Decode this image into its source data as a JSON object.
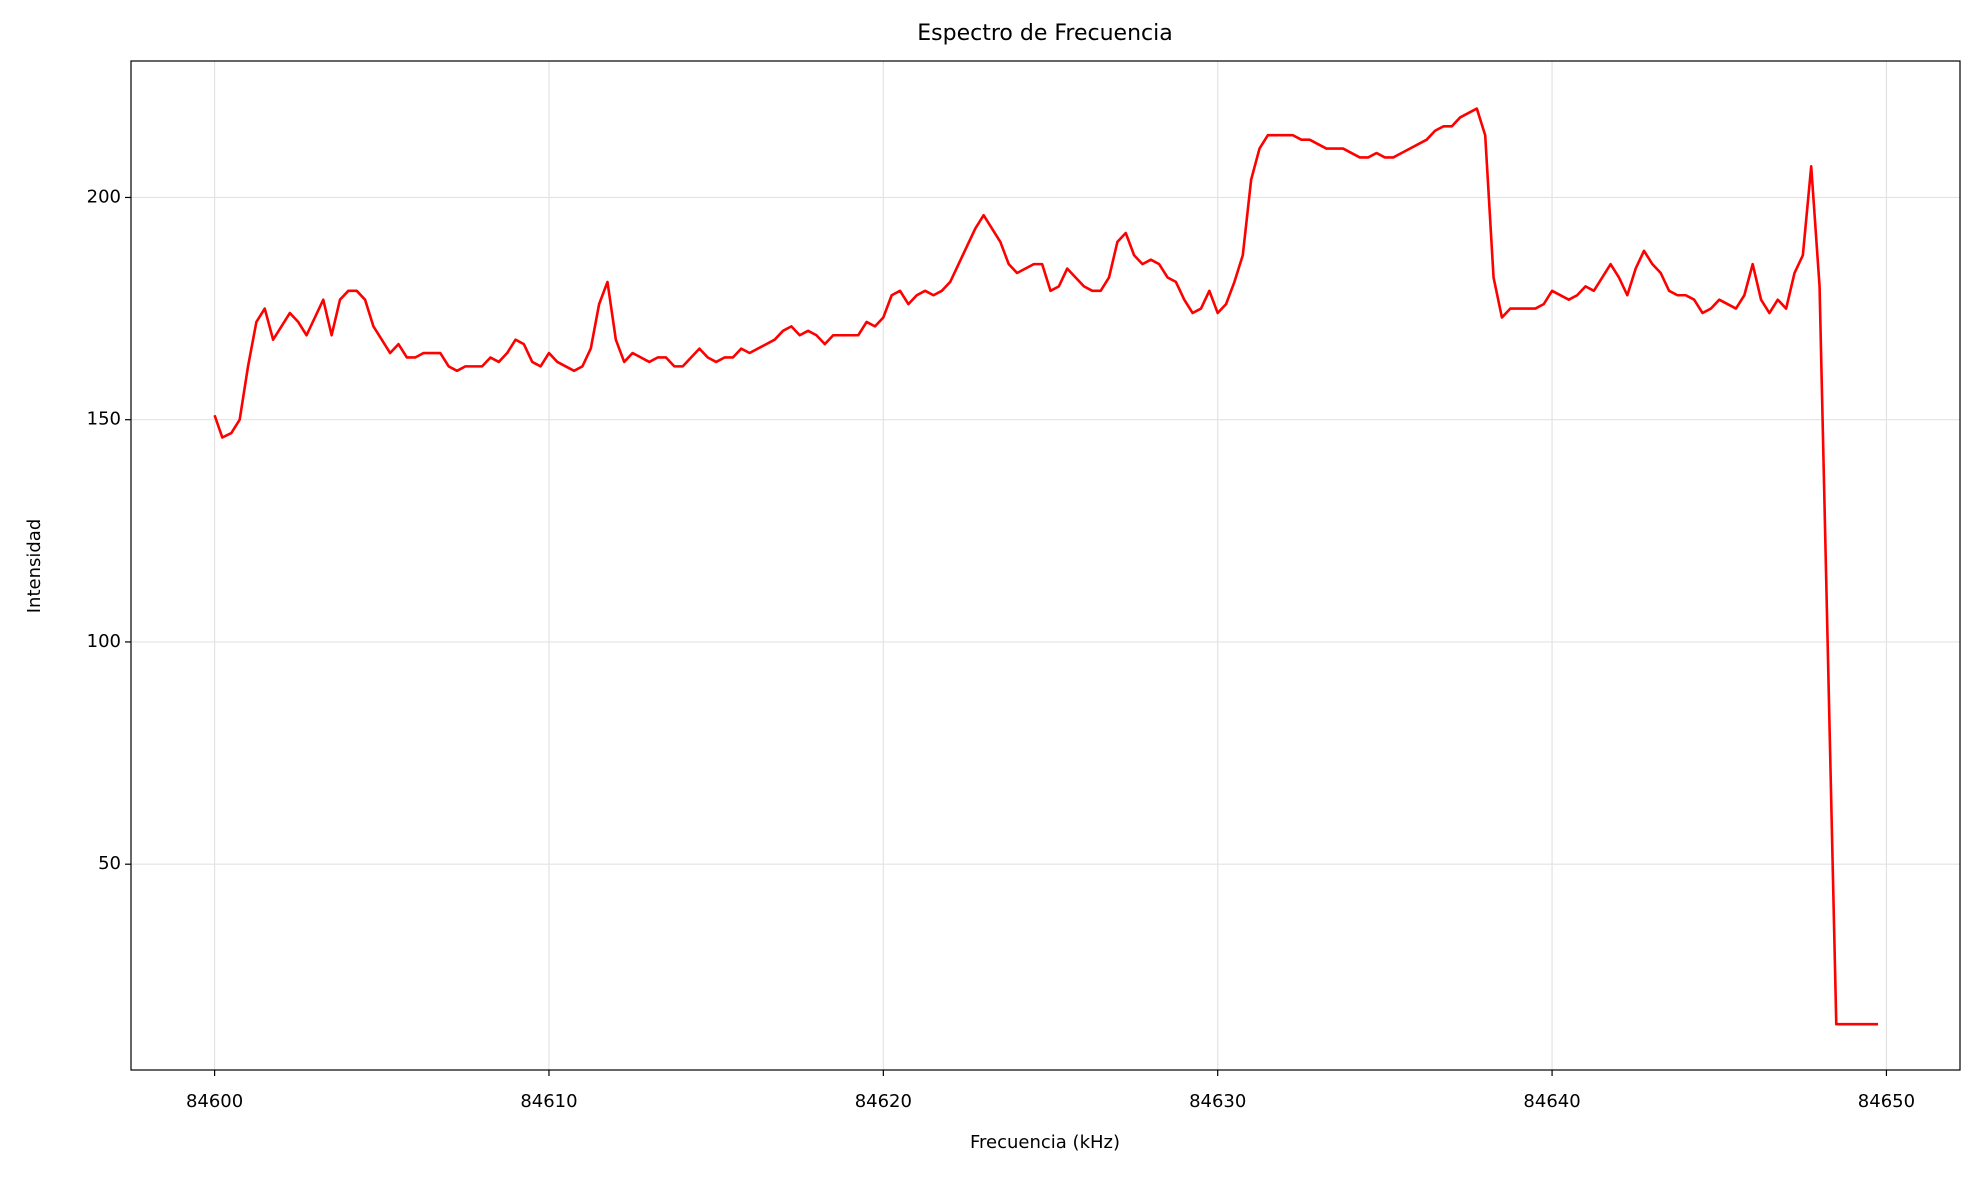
{
  "chart_data": {
    "type": "line",
    "title": "Espectro de Frecuencia",
    "x_label": "Frecuencia (kHz)",
    "y_label": "Intensidad",
    "x": [
      84600,
      84600.23,
      84600.5,
      84600.75,
      84601,
      84601.25,
      84601.5,
      84601.75,
      84602.25,
      84602.5,
      84602.75,
      84603.25,
      84603.5,
      84603.75,
      84604,
      84604.25,
      84604.5,
      84604.75,
      84605.25,
      84605.5,
      84605.75,
      84606,
      84606.25,
      84606.75,
      84607,
      84607.25,
      84607.5,
      84608,
      84608.25,
      84608.5,
      84608.75,
      84609,
      84609.25,
      84609.5,
      84609.75,
      84610,
      84610.25,
      84610.75,
      84611,
      84611.25,
      84611.5,
      84611.75,
      84612,
      84612.25,
      84612.5,
      84613,
      84613.25,
      84613.5,
      84613.75,
      84614,
      84614.5,
      84614.75,
      84615,
      84615.25,
      84615.5,
      84615.75,
      84616,
      84616.75,
      84617,
      84617.25,
      84617.5,
      84617.75,
      84618,
      84618.25,
      84618.5,
      84619.25,
      84619.5,
      84619.75,
      84620,
      84620.25,
      84620.5,
      84620.75,
      84621,
      84621.25,
      84621.5,
      84621.75,
      84622,
      84622.75,
      84623,
      84623.5,
      84623.75,
      84624,
      84624.5,
      84624.75,
      84625,
      84625.25,
      84625.5,
      84626,
      84626.25,
      84626.5,
      84626.75,
      84627,
      84627.25,
      84627.5,
      84627.75,
      84628,
      84628.25,
      84628.5,
      84628.75,
      84629,
      84629.25,
      84629.5,
      84629.75,
      84630,
      84630.25,
      84630.5,
      84630.75,
      84631,
      84631.25,
      84631.5,
      84632.25,
      84632.5,
      84632.75,
      84633.25,
      84633.75,
      84634.25,
      84634.5,
      84634.75,
      84635,
      84635.25,
      84636.25,
      84636.5,
      84636.75,
      84637,
      84637.25,
      84637.75,
      84638,
      84638.25,
      84638.5,
      84638.75,
      84639.5,
      84639.75,
      84640,
      84640.5,
      84640.75,
      84641,
      84641.25,
      84641.75,
      84642,
      84642.25,
      84642.5,
      84642.75,
      84643,
      84643.25,
      84643.5,
      84643.75,
      84644,
      84644.25,
      84644.5,
      84644.75,
      84645,
      84645.5,
      84645.75,
      84646,
      84646.25,
      84646.5,
      84646.75,
      84647,
      84647.25,
      84647.5,
      84647.75,
      84648,
      84648.5,
      84649.75
    ],
    "series": [
      {
        "color": "#ff0000",
        "values": [
          151,
          146,
          147,
          150,
          162,
          172,
          175,
          168,
          174,
          172,
          169,
          177,
          169,
          177,
          179,
          179,
          177,
          171,
          165,
          167,
          164,
          164,
          165,
          165,
          162,
          161,
          162,
          162,
          164,
          163,
          165,
          168,
          167,
          163,
          162,
          165,
          163,
          161,
          162,
          166,
          176,
          181,
          168,
          163,
          165,
          163,
          164,
          164,
          162,
          162,
          166,
          164,
          163,
          164,
          164,
          166,
          165,
          168,
          170,
          171,
          169,
          170,
          169,
          167,
          169,
          169,
          172,
          171,
          173,
          178,
          179,
          176,
          178,
          179,
          178,
          179,
          181,
          193,
          196,
          190,
          185,
          183,
          185,
          185,
          179,
          180,
          184,
          180,
          179,
          179,
          182,
          190,
          192,
          187,
          185,
          186,
          185,
          182,
          181,
          177,
          174,
          175,
          179,
          174,
          176,
          181,
          187,
          204,
          211,
          214,
          214,
          213,
          213,
          211,
          211,
          209,
          209,
          210,
          209,
          209,
          213,
          215,
          216,
          216,
          218,
          220,
          214,
          182,
          173,
          175,
          175,
          176,
          179,
          177,
          178,
          180,
          179,
          185,
          182,
          178,
          184,
          188,
          185,
          183,
          179,
          178,
          178,
          177,
          174,
          175,
          177,
          175,
          178,
          185,
          177,
          174,
          177,
          175,
          183,
          187,
          207,
          180,
          14,
          14
        ]
      }
    ],
    "xlim": [
      84597.5,
      84652.2
    ],
    "ylim": [
      3.7,
      230.7
    ],
    "xticks": [
      84600,
      84610,
      84620,
      84630,
      84640,
      84650
    ],
    "yticks": [
      50,
      100,
      150,
      200
    ],
    "grid": true
  }
}
